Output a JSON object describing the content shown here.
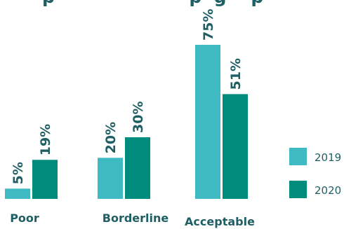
{
  "header": {
    "title_fragment": "p                      p  g    p"
  },
  "chart_data": {
    "type": "bar",
    "categories": [
      "Poor",
      "Borderline",
      "Acceptable"
    ],
    "series": [
      {
        "name": "2019",
        "values": [
          5,
          20,
          75
        ],
        "labels": [
          "5%",
          "20%",
          "75%"
        ],
        "color": "#3fbac2"
      },
      {
        "name": "2020",
        "values": [
          19,
          30,
          51
        ],
        "labels": [
          "19%",
          "30%",
          "51%"
        ],
        "color": "#008c7c"
      }
    ],
    "ylim": [
      0,
      75
    ],
    "grid": false,
    "legend_position": "right"
  }
}
